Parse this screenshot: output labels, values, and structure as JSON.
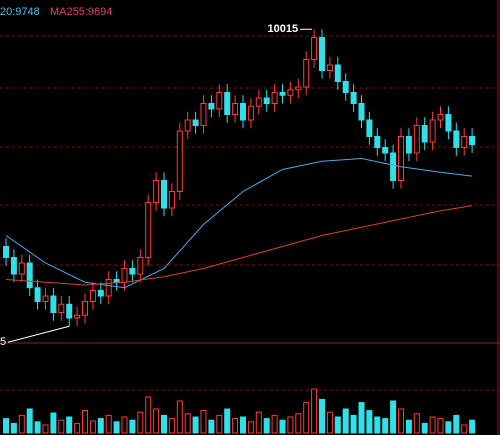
{
  "chart_data": {
    "type": "candlestick",
    "header": [
      "20:9748",
      "MA255:9694"
    ],
    "header_colors": [
      "#4fc3e8",
      "#e0406a"
    ],
    "peak_label": "10015",
    "low_label": "5",
    "up_color": "#ff3b3b",
    "down_color": "#2fe0e8",
    "ylim": [
      9450,
      10050
    ],
    "open": [
      9620,
      9600,
      9570,
      9590,
      9545,
      9520,
      9530,
      9500,
      9515,
      9490,
      9495,
      9520,
      9540,
      9530,
      9560,
      9555,
      9580,
      9570,
      9600,
      9700,
      9740,
      9690,
      9720,
      9830,
      9850,
      9840,
      9880,
      9870,
      9900,
      9860,
      9880,
      9850,
      9875,
      9890,
      9880,
      9900,
      9895,
      9905,
      9910,
      9960,
      10000,
      9940,
      9950,
      9920,
      9900,
      9880,
      9850,
      9820,
      9800,
      9790,
      9740,
      9820,
      9790,
      9840,
      9810,
      9850,
      9860,
      9830,
      9800,
      9820
    ],
    "high": [
      9635,
      9615,
      9605,
      9605,
      9560,
      9545,
      9545,
      9530,
      9530,
      9510,
      9535,
      9555,
      9555,
      9575,
      9575,
      9595,
      9595,
      9615,
      9715,
      9755,
      9755,
      9735,
      9845,
      9865,
      9865,
      9895,
      9895,
      9915,
      9915,
      9895,
      9895,
      9890,
      9905,
      9905,
      9915,
      9915,
      9920,
      9925,
      9975,
      10015,
      10015,
      9965,
      9965,
      9935,
      9915,
      9895,
      9865,
      9835,
      9815,
      9805,
      9835,
      9835,
      9855,
      9855,
      9865,
      9875,
      9875,
      9845,
      9835,
      9835
    ],
    "low": [
      9585,
      9555,
      9555,
      9530,
      9505,
      9505,
      9485,
      9485,
      9475,
      9475,
      9480,
      9505,
      9515,
      9515,
      9540,
      9540,
      9555,
      9555,
      9585,
      9685,
      9675,
      9675,
      9705,
      9815,
      9825,
      9825,
      9855,
      9855,
      9845,
      9845,
      9835,
      9835,
      9860,
      9865,
      9865,
      9880,
      9880,
      9890,
      9895,
      9945,
      9925,
      9925,
      9905,
      9885,
      9865,
      9835,
      9805,
      9785,
      9775,
      9725,
      9725,
      9775,
      9775,
      9795,
      9795,
      9835,
      9815,
      9785,
      9785,
      9790
    ],
    "close": [
      9600,
      9570,
      9590,
      9545,
      9520,
      9530,
      9500,
      9515,
      9490,
      9495,
      9520,
      9540,
      9530,
      9560,
      9555,
      9580,
      9570,
      9600,
      9700,
      9740,
      9690,
      9720,
      9830,
      9850,
      9840,
      9880,
      9870,
      9900,
      9860,
      9880,
      9850,
      9875,
      9890,
      9880,
      9900,
      9895,
      9905,
      9910,
      9960,
      10000,
      9940,
      9950,
      9920,
      9900,
      9880,
      9850,
      9820,
      9800,
      9790,
      9740,
      9820,
      9790,
      9840,
      9810,
      9850,
      9860,
      9830,
      9800,
      9820,
      9805
    ],
    "ma_lines": [
      {
        "color": "#4fa8e8",
        "x": [
          0,
          5,
          10,
          15,
          20,
          25,
          30,
          35,
          40,
          45,
          50,
          55,
          59
        ],
        "values": [
          9640,
          9590,
          9555,
          9545,
          9580,
          9660,
          9720,
          9760,
          9775,
          9780,
          9765,
          9755,
          9748
        ]
      },
      {
        "color": "#d0442c",
        "x": [
          0,
          5,
          10,
          15,
          20,
          25,
          30,
          35,
          40,
          45,
          50,
          55,
          59
        ],
        "values": [
          9560,
          9555,
          9550,
          9555,
          9565,
          9580,
          9600,
          9620,
          9640,
          9655,
          9670,
          9685,
          9694
        ]
      }
    ],
    "volume": [
      18,
      12,
      22,
      30,
      14,
      10,
      25,
      16,
      20,
      12,
      28,
      15,
      18,
      22,
      14,
      20,
      16,
      26,
      45,
      30,
      22,
      18,
      40,
      24,
      20,
      28,
      16,
      22,
      30,
      18,
      20,
      14,
      26,
      18,
      22,
      16,
      20,
      24,
      38,
      55,
      42,
      26,
      20,
      30,
      22,
      38,
      28,
      20,
      18,
      40,
      30,
      16,
      24,
      12,
      20,
      18,
      14,
      22,
      10,
      16
    ],
    "volume_ylim": [
      0,
      100
    ]
  }
}
